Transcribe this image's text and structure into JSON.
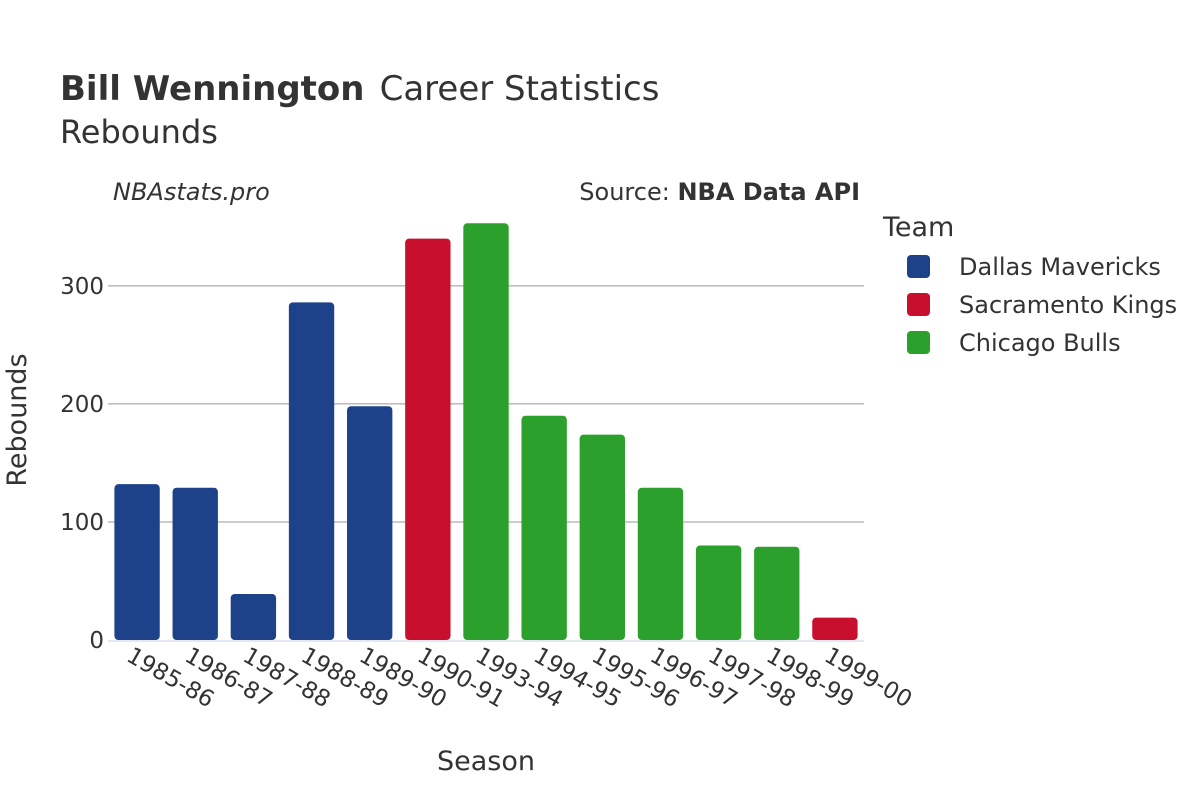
{
  "header": {
    "title_bold": "Bill Wennington",
    "title_rest": "Career Statistics",
    "subtitle": "Rebounds",
    "watermark": "NBAstats.pro",
    "source_prefix": "Source: ",
    "source_bold": "NBA Data API"
  },
  "legend": {
    "title": "Team",
    "items": [
      {
        "label": "Dallas Mavericks",
        "color": "#1d428a"
      },
      {
        "label": "Sacramento Kings",
        "color": "#c8102e"
      },
      {
        "label": "Chicago Bulls",
        "color": "#2ca02c"
      }
    ]
  },
  "chart_data": {
    "type": "bar",
    "xlabel": "Season",
    "ylabel": "Rebounds",
    "ylim": [
      0,
      360
    ],
    "yticks": [
      0,
      100,
      200,
      300
    ],
    "grid": true,
    "legend_position": "right",
    "categories": [
      "1985-86",
      "1986-87",
      "1987-88",
      "1988-89",
      "1989-90",
      "1990-91",
      "1993-94",
      "1994-95",
      "1995-96",
      "1996-97",
      "1997-98",
      "1998-99",
      "1999-00"
    ],
    "values": [
      132,
      129,
      39,
      286,
      198,
      340,
      353,
      190,
      174,
      129,
      80,
      79,
      19
    ],
    "teams": [
      "Dallas Mavericks",
      "Dallas Mavericks",
      "Dallas Mavericks",
      "Dallas Mavericks",
      "Dallas Mavericks",
      "Sacramento Kings",
      "Chicago Bulls",
      "Chicago Bulls",
      "Chicago Bulls",
      "Chicago Bulls",
      "Chicago Bulls",
      "Chicago Bulls",
      "Sacramento Kings"
    ]
  }
}
